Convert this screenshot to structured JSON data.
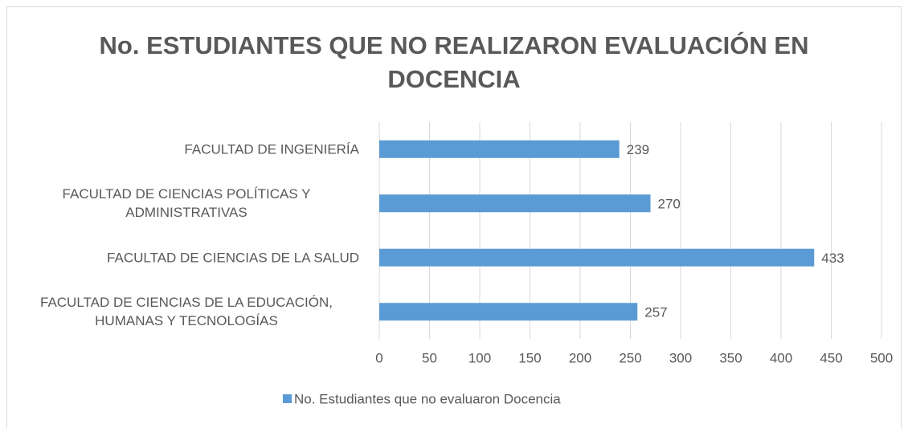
{
  "chart_data": {
    "type": "bar",
    "orientation": "horizontal",
    "title": "No. ESTUDIANTES QUE NO REALIZARON EVALUACIÓN EN DOCENCIA",
    "categories": [
      "FACULTAD DE INGENIERÍA",
      "FACULTAD DE CIENCIAS POLÍTICAS Y ADMINISTRATIVAS",
      "FACULTAD DE CIENCIAS DE LA SALUD",
      "FACULTAD DE CIENCIAS DE LA EDUCACIÓN, HUMANAS Y TECNOLOGÍAS"
    ],
    "series": [
      {
        "name": "No. Estudiantes que no evaluaron Docencia",
        "color": "#5b9bd5",
        "values": [
          239,
          270,
          433,
          257
        ]
      }
    ],
    "xlim": [
      0,
      500
    ],
    "xticks": [
      0,
      50,
      100,
      150,
      200,
      250,
      300,
      350,
      400,
      450,
      500
    ],
    "grid": true,
    "legend": "bottom"
  }
}
